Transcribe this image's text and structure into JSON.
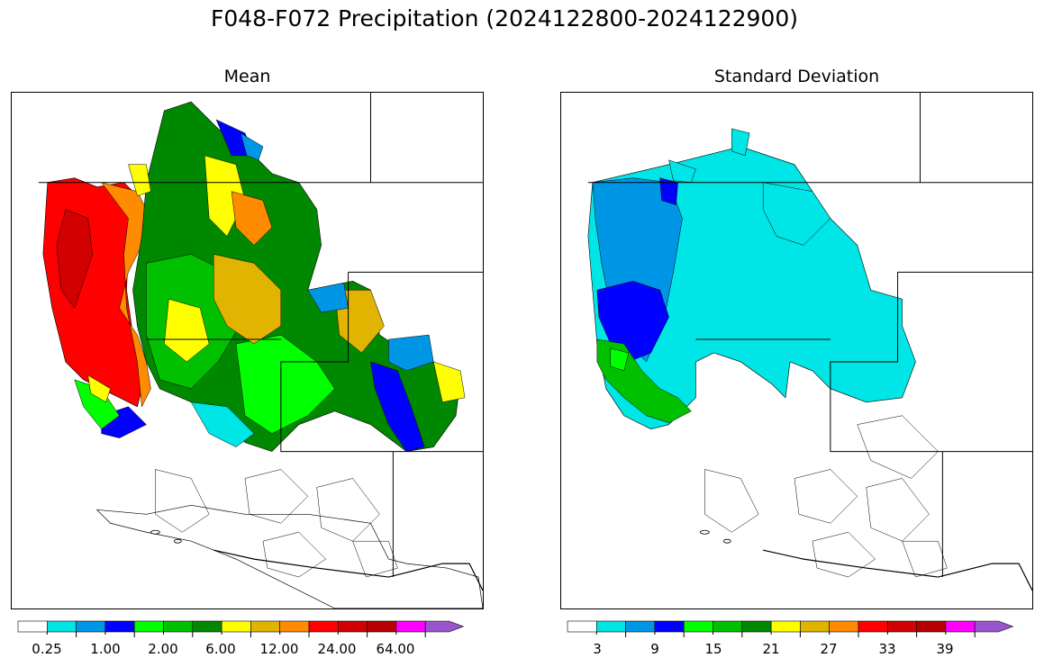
{
  "title": "F048-F072 Precipitation (2024122800-2024122900)",
  "panels": [
    {
      "title": "Mean",
      "colorbar": {
        "colors": [
          "#ffffff",
          "#00e5e5",
          "#0096e6",
          "#0000ff",
          "#00ff00",
          "#00c000",
          "#008800",
          "#ffff00",
          "#e0b400",
          "#ff8c00",
          "#ff0000",
          "#d20000",
          "#b40000",
          "#ff00ff",
          "#9955cc"
        ],
        "tick_labels": [
          "0.25",
          "1.00",
          "2.00",
          "6.00",
          "12.00",
          "24.00",
          "64.00"
        ],
        "extend": "max"
      }
    },
    {
      "title": "Standard Deviation",
      "colorbar": {
        "colors": [
          "#ffffff",
          "#00e5e5",
          "#0096e6",
          "#0000ff",
          "#00ff00",
          "#00c000",
          "#008800",
          "#ffff00",
          "#e0b400",
          "#ff8c00",
          "#ff0000",
          "#d20000",
          "#b40000",
          "#ff00ff",
          "#9955cc"
        ],
        "tick_labels": [
          "3",
          "9",
          "15",
          "21",
          "27",
          "33",
          "39"
        ],
        "extend": "max"
      }
    }
  ]
}
